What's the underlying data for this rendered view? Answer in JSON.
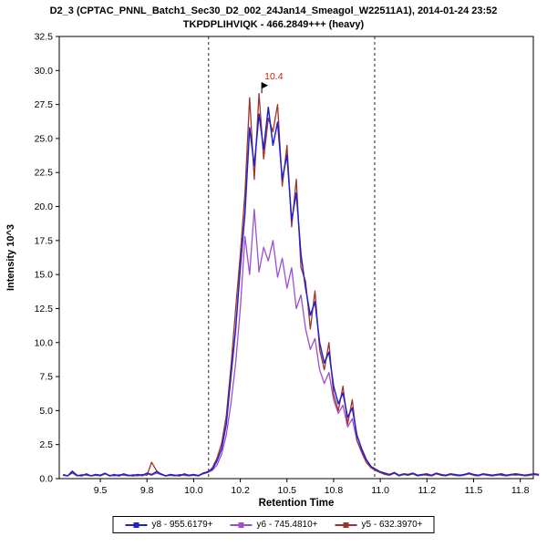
{
  "chart_data": {
    "type": "line",
    "title": "D2_3 (CPTAC_PNNL_Batch1_Sec30_D2_002_24Jan14_Smeagol_W22511A1), 2014-01-24 23:52",
    "subtitle": "TKPDPLIHVIQK - 466.2849+++ (heavy)",
    "xlabel": "Retention Time",
    "ylabel": "Intensity 10^3",
    "xlim": [
      9.28,
      11.82
    ],
    "ylim": [
      0,
      32.5
    ],
    "xticks": [
      9.5,
      9.75,
      10.0,
      10.25,
      10.5,
      10.75,
      11.0,
      11.25,
      11.5,
      11.75
    ],
    "xtick_labels": [
      "9.5",
      "9.8",
      "10.0",
      "10.2",
      "10.5",
      "10.8",
      "11.0",
      "11.2",
      "11.5",
      "11.8"
    ],
    "yticks": [
      0,
      2.5,
      5,
      7.5,
      10,
      12.5,
      15,
      17.5,
      20,
      22.5,
      25,
      27.5,
      30,
      32.5
    ],
    "grid": false,
    "legend_position": "bottom",
    "peak_boundaries": [
      10.08,
      10.97
    ],
    "annotation": {
      "label": "10.4",
      "x": 10.365,
      "y": 28.8,
      "color": "#cc2200"
    },
    "x_start": 9.3,
    "x_step": 0.025,
    "series": [
      {
        "name": "y8 - 955.6179+",
        "color": "#2222cc",
        "z": 2,
        "width": 1.5,
        "values": [
          0.3,
          0.2,
          0.55,
          0.25,
          0.2,
          0.35,
          0.2,
          0.3,
          0.25,
          0.4,
          0.2,
          0.3,
          0.2,
          0.35,
          0.25,
          0.2,
          0.3,
          0.25,
          0.4,
          0.3,
          0.5,
          0.35,
          0.2,
          0.3,
          0.25,
          0.2,
          0.35,
          0.25,
          0.3,
          0.2,
          0.4,
          0.5,
          0.7,
          1.3,
          2.2,
          4.0,
          7.5,
          11.0,
          15.5,
          19.5,
          25.8,
          23.0,
          26.8,
          24.2,
          27.3,
          24.5,
          26.2,
          22.0,
          23.8,
          19.0,
          21.0,
          16.5,
          14.0,
          12.0,
          13.0,
          10.0,
          8.5,
          9.3,
          6.8,
          5.5,
          6.3,
          4.5,
          5.2,
          3.2,
          2.2,
          1.4,
          0.9,
          0.7,
          0.5,
          0.4,
          0.3,
          0.45,
          0.25,
          0.35,
          0.3,
          0.4,
          0.25,
          0.3,
          0.35,
          0.25,
          0.4,
          0.3,
          0.25,
          0.35,
          0.3,
          0.25,
          0.3,
          0.4,
          0.3,
          0.25,
          0.35,
          0.3,
          0.25,
          0.3,
          0.35,
          0.25,
          0.3,
          0.35,
          0.3,
          0.25,
          0.3,
          0.35,
          0.3
        ]
      },
      {
        "name": "y6 - 745.4810+",
        "color": "#9b4fd4",
        "z": 0,
        "width": 1.3,
        "values": [
          0.25,
          0.2,
          0.4,
          0.2,
          0.3,
          0.25,
          0.2,
          0.3,
          0.2,
          0.35,
          0.25,
          0.2,
          0.3,
          0.25,
          0.2,
          0.3,
          0.25,
          0.2,
          0.35,
          0.25,
          0.4,
          0.3,
          0.2,
          0.25,
          0.2,
          0.3,
          0.25,
          0.2,
          0.3,
          0.25,
          0.35,
          0.45,
          0.6,
          1.0,
          1.8,
          3.2,
          5.5,
          8.5,
          12.5,
          17.8,
          15.0,
          19.8,
          15.2,
          17.0,
          16.0,
          17.5,
          14.8,
          16.2,
          14.0,
          15.5,
          12.5,
          13.5,
          11.0,
          9.5,
          10.3,
          8.0,
          7.0,
          7.8,
          5.8,
          4.8,
          5.4,
          3.8,
          4.4,
          2.8,
          1.9,
          1.2,
          0.8,
          0.6,
          0.45,
          0.35,
          0.25,
          0.4,
          0.2,
          0.3,
          0.25,
          0.35,
          0.2,
          0.25,
          0.3,
          0.2,
          0.35,
          0.25,
          0.2,
          0.3,
          0.25,
          0.2,
          0.25,
          0.35,
          0.25,
          0.2,
          0.3,
          0.25,
          0.2,
          0.25,
          0.3,
          0.2,
          0.25,
          0.3,
          0.25,
          0.2,
          0.25,
          0.3,
          0.25
        ]
      },
      {
        "name": "y5 - 632.3970+",
        "color": "#a03428",
        "z": 1,
        "width": 1.3,
        "values": [
          0.25,
          0.2,
          0.45,
          0.2,
          0.25,
          0.3,
          0.2,
          0.25,
          0.2,
          0.35,
          0.2,
          0.25,
          0.2,
          0.3,
          0.2,
          0.25,
          0.2,
          0.3,
          0.25,
          1.2,
          0.6,
          0.3,
          0.2,
          0.25,
          0.2,
          0.3,
          0.25,
          0.2,
          0.25,
          0.2,
          0.35,
          0.45,
          0.8,
          1.5,
          2.6,
          4.6,
          8.2,
          12.5,
          16.5,
          21.0,
          28.0,
          22.0,
          28.3,
          23.5,
          26.5,
          25.5,
          27.5,
          21.5,
          24.5,
          18.5,
          22.0,
          15.5,
          14.5,
          11.0,
          13.8,
          9.5,
          8.0,
          10.0,
          6.2,
          5.0,
          6.8,
          4.0,
          5.8,
          2.8,
          2.0,
          1.2,
          0.8,
          0.6,
          0.45,
          0.3,
          0.25,
          0.4,
          0.2,
          0.3,
          0.25,
          0.35,
          0.2,
          0.3,
          0.25,
          0.2,
          0.35,
          0.25,
          0.2,
          0.3,
          0.25,
          0.2,
          0.3,
          0.35,
          0.25,
          0.2,
          0.3,
          0.25,
          0.2,
          0.3,
          0.25,
          0.2,
          0.3,
          0.25,
          0.3,
          0.2,
          0.25,
          0.3,
          0.25
        ]
      }
    ]
  }
}
